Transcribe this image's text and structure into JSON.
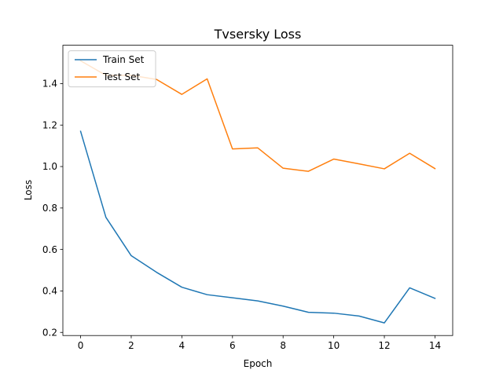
{
  "chart_data": {
    "type": "line",
    "title": "Tvsersky Loss",
    "xlabel": "Epoch",
    "ylabel": "Loss",
    "xlim": [
      -0.7,
      14.7
    ],
    "ylim": [
      0.185,
      1.585
    ],
    "xticks": [
      0,
      2,
      4,
      6,
      8,
      10,
      12,
      14
    ],
    "xtick_labels": [
      "0",
      "2",
      "4",
      "6",
      "8",
      "10",
      "12",
      "14"
    ],
    "yticks": [
      0.2,
      0.4,
      0.6,
      0.8,
      1.0,
      1.2,
      1.4
    ],
    "ytick_labels": [
      "0.2",
      "0.4",
      "0.6",
      "0.8",
      "1.0",
      "1.2",
      "1.4"
    ],
    "grid": false,
    "legend_position": "upper-left",
    "x": [
      0,
      1,
      2,
      3,
      4,
      5,
      6,
      7,
      8,
      9,
      10,
      11,
      12,
      13,
      14
    ],
    "series": [
      {
        "name": "Train Set",
        "color": "#1f77b4",
        "values": [
          1.17,
          0.755,
          0.57,
          0.49,
          0.418,
          0.382,
          0.367,
          0.352,
          0.327,
          0.297,
          0.293,
          0.279,
          0.246,
          0.415,
          0.364
        ]
      },
      {
        "name": "Test Set",
        "color": "#ff7f0e",
        "values": [
          1.51,
          1.44,
          1.44,
          1.42,
          1.348,
          1.423,
          1.085,
          1.09,
          0.992,
          0.977,
          1.036,
          1.013,
          0.989,
          1.064,
          0.99
        ]
      }
    ]
  }
}
